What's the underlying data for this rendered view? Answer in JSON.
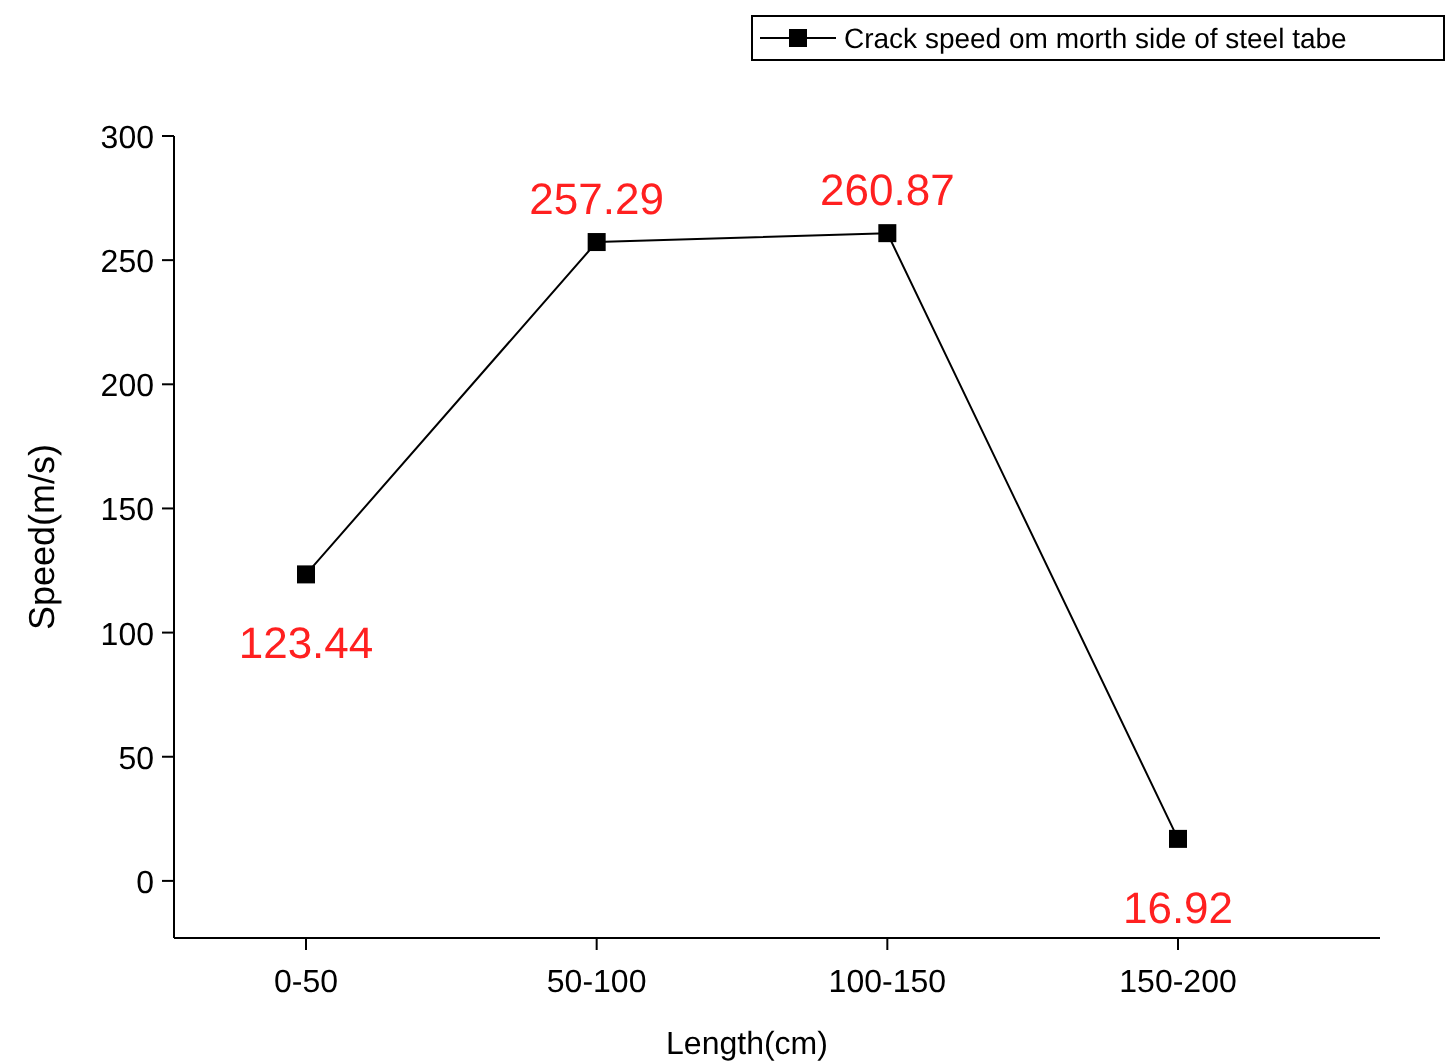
{
  "chart_data": {
    "type": "line",
    "xlabel": "Length(cm)",
    "ylabel": "Speed(m/s)",
    "categories": [
      "0-50",
      "50-100",
      "100-150",
      "150-200"
    ],
    "series": [
      {
        "name": "Crack speed om morth side of steel tabe",
        "color": "#000000",
        "values": [
          123.44,
          257.29,
          260.87,
          16.92
        ]
      }
    ],
    "ylim": [
      -23,
      300
    ],
    "yticks": [
      0,
      50,
      100,
      150,
      200,
      250,
      300
    ],
    "marker": "square",
    "line_style": "solid",
    "data_labels": true,
    "legend": "top right",
    "grid": false
  }
}
